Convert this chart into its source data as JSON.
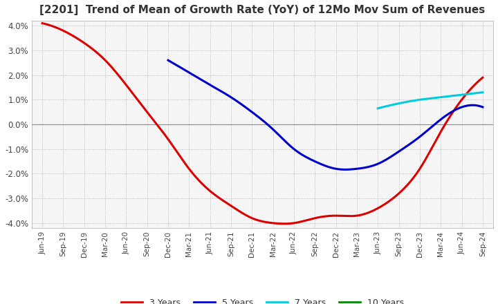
{
  "title": "[2201]  Trend of Mean of Growth Rate (YoY) of 12Mo Mov Sum of Revenues",
  "title_fontsize": 11,
  "background_color": "#ffffff",
  "plot_bg_color": "#f5f5f5",
  "grid_color": "#aaaaaa",
  "ylim": [
    -0.042,
    0.042
  ],
  "yticks": [
    -0.04,
    -0.03,
    -0.02,
    -0.01,
    0.0,
    0.01,
    0.02,
    0.03,
    0.04
  ],
  "ytick_labels": [
    "-4.0%",
    "-3.0%",
    "-2.0%",
    "-1.0%",
    "0.0%",
    "1.0%",
    "2.0%",
    "3.0%",
    "4.0%"
  ],
  "x_labels": [
    "Jun-19",
    "Sep-19",
    "Dec-19",
    "Mar-20",
    "Jun-20",
    "Sep-20",
    "Dec-20",
    "Mar-21",
    "Jun-21",
    "Sep-21",
    "Dec-21",
    "Mar-22",
    "Jun-22",
    "Sep-22",
    "Dec-22",
    "Mar-23",
    "Jun-23",
    "Sep-23",
    "Dec-23",
    "Mar-24",
    "Jun-24",
    "Sep-24"
  ],
  "line_3y_color": "#dd0000",
  "line_5y_color": "#0000cc",
  "line_7y_color": "#00ccdd",
  "line_10y_color": "#008800",
  "line_width": 2.2,
  "legend_labels": [
    "3 Years",
    "5 Years",
    "7 Years",
    "10 Years"
  ],
  "line_3y": [
    0.041,
    0.038,
    0.033,
    0.026,
    0.016,
    0.005,
    -0.006,
    -0.018,
    -0.027,
    -0.033,
    -0.038,
    -0.04,
    -0.04,
    -0.038,
    -0.037,
    -0.037,
    -0.034,
    -0.028,
    -0.018,
    -0.003,
    0.01,
    0.019
  ],
  "line_5y": [
    null,
    null,
    null,
    null,
    null,
    null,
    0.026,
    0.021,
    0.016,
    0.011,
    0.005,
    -0.002,
    -0.01,
    -0.015,
    -0.018,
    -0.018,
    -0.016,
    -0.011,
    -0.005,
    0.002,
    0.007,
    0.007
  ],
  "line_7y": [
    null,
    null,
    null,
    null,
    null,
    null,
    null,
    null,
    null,
    null,
    null,
    null,
    null,
    null,
    null,
    null,
    0.0065,
    0.0085,
    0.01,
    0.011,
    0.012,
    0.013
  ],
  "line_10y": [
    null,
    null,
    null,
    null,
    null,
    null,
    null,
    null,
    null,
    null,
    null,
    null,
    null,
    null,
    null,
    null,
    null,
    null,
    null,
    null,
    null,
    null
  ]
}
